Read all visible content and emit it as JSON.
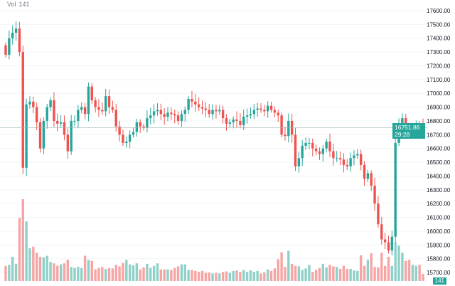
{
  "legend": {
    "label": "Vol",
    "value": "141"
  },
  "price_label": {
    "price": "16751.86",
    "countdown": "29:28"
  },
  "volume_label": "141",
  "colors": {
    "up": "#26a69a",
    "down": "#ef5350",
    "up_vol": "#8fd1c9",
    "down_vol": "#f5a5a3",
    "grid": "#f0f3fa",
    "axis_text": "#131722"
  },
  "chart_data": {
    "type": "candlestick",
    "title": "",
    "y_ticks": [
      "17600.00",
      "17500.00",
      "17400.00",
      "17300.00",
      "17200.00",
      "17100.00",
      "17000.00",
      "16900.00",
      "16800.00",
      "16700.00",
      "16600.00",
      "16500.00",
      "16400.00",
      "16300.00",
      "16200.00",
      "16100.00",
      "16000.00",
      "15900.00",
      "15800.00",
      "15700.00"
    ],
    "ylim": [
      15700,
      17600
    ],
    "current_price": 16751.86,
    "first_open": 17350,
    "close": [
      17280,
      17400,
      17440,
      17470,
      17300,
      16460,
      16920,
      16940,
      16900,
      16790,
      16600,
      16800,
      16900,
      16950,
      16800,
      16780,
      16790,
      16700,
      16580,
      16800,
      16800,
      16880,
      16900,
      16850,
      17050,
      16950,
      16900,
      16880,
      16870,
      16980,
      16900,
      16880,
      16760,
      16700,
      16640,
      16650,
      16700,
      16720,
      16790,
      16760,
      16750,
      16820,
      16840,
      16870,
      16880,
      16850,
      16830,
      16860,
      16850,
      16840,
      16800,
      16850,
      16880,
      16960,
      16940,
      16920,
      16900,
      16890,
      16880,
      16850,
      16880,
      16870,
      16880,
      16820,
      16780,
      16790,
      16810,
      16800,
      16770,
      16830,
      16840,
      16850,
      16880,
      16890,
      16880,
      16870,
      16910,
      16880,
      16860,
      16840,
      16700,
      16690,
      16800,
      16700,
      16470,
      16530,
      16620,
      16640,
      16640,
      16600,
      16580,
      16560,
      16600,
      16650,
      16580,
      16530,
      16530,
      16520,
      16480,
      16470,
      16530,
      16550,
      16560,
      16480,
      16380,
      16420,
      16330,
      16200,
      16050,
      15940,
      15920,
      15860,
      15960,
      16640,
      16780,
      16820,
      16760,
      16720,
      16760,
      16780,
      16760,
      16752
    ],
    "volume": [
      300,
      320,
      480,
      340,
      1250,
      1620,
      1180,
      650,
      680,
      560,
      480,
      470,
      500,
      380,
      350,
      300,
      330,
      350,
      420,
      280,
      260,
      280,
      260,
      500,
      420,
      400,
      230,
      260,
      280,
      240,
      260,
      250,
      320,
      290,
      360,
      420,
      330,
      310,
      350,
      230,
      270,
      340,
      260,
      300,
      350,
      230,
      230,
      230,
      220,
      260,
      290,
      330,
      330,
      220,
      220,
      200,
      180,
      200,
      160,
      170,
      150,
      160,
      150,
      180,
      190,
      160,
      200,
      210,
      180,
      220,
      180,
      210,
      180,
      200,
      150,
      170,
      230,
      200,
      250,
      430,
      570,
      280,
      600,
      340,
      300,
      290,
      220,
      250,
      320,
      180,
      220,
      260,
      340,
      270,
      320,
      290,
      280,
      240,
      300,
      240,
      240,
      210,
      200,
      510,
      300,
      420,
      550,
      280,
      270,
      560,
      300,
      480,
      300,
      760,
      700,
      560,
      400,
      420,
      320,
      300,
      320,
      141
    ]
  }
}
